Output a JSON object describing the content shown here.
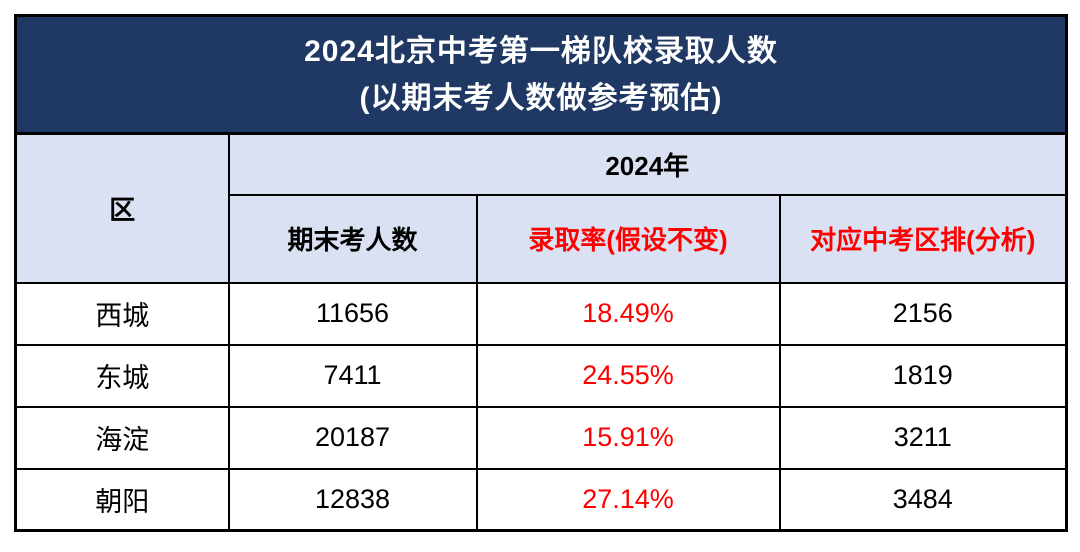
{
  "title": {
    "line1": "2024北京中考第一梯队校录取人数",
    "line2": "(以期末考人数做参考预估)"
  },
  "colors": {
    "title_bg": "#1F3864",
    "title_text": "#FFFFFF",
    "header_bg": "#D9E1F2",
    "data_bg": "#FFFFFF",
    "accent_red": "#FF0000",
    "text_black": "#000000",
    "border": "#000000"
  },
  "chart_data": {
    "type": "table",
    "title": "2024北京中考第一梯队校录取人数 (以期末考人数做参考预估)",
    "group_header": "2024年",
    "columns": [
      "区",
      "期末考人数",
      "录取率(假设不变)",
      "对应中考区排(分析)"
    ],
    "column_text_colors": [
      "#000000",
      "#000000",
      "#FF0000",
      "#FF0000"
    ],
    "rows": [
      [
        "西城",
        "11656",
        "18.49%",
        "2156"
      ],
      [
        "东城",
        "7411",
        "24.55%",
        "1819"
      ],
      [
        "海淀",
        "20187",
        "15.91%",
        "3211"
      ],
      [
        "朝阳",
        "12838",
        "27.14%",
        "3484"
      ]
    ]
  }
}
